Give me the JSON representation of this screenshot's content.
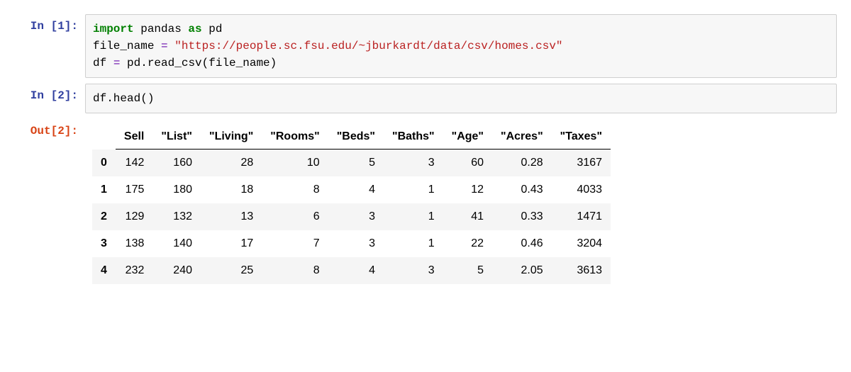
{
  "cells": {
    "in1": {
      "prompt": "In [1]:",
      "code": {
        "line1_kw1": "import",
        "line1_mod": " pandas ",
        "line1_kw2": "as",
        "line1_alias": " pd",
        "line2_var": "file_name ",
        "line2_eq": "=",
        "line2_sp": " ",
        "line2_str": "\"https://people.sc.fsu.edu/~jburkardt/data/csv/homes.csv\"",
        "line3_lhs": "df ",
        "line3_eq": "=",
        "line3_rhs": " pd.read_csv(file_name)"
      }
    },
    "in2": {
      "prompt": "In [2]:",
      "code": "df.head()"
    },
    "out2": {
      "prompt": "Out[2]:",
      "table": {
        "columns": [
          "Sell",
          "\"List\"",
          "\"Living\"",
          "\"Rooms\"",
          "\"Beds\"",
          "\"Baths\"",
          "\"Age\"",
          "\"Acres\"",
          "\"Taxes\""
        ],
        "index": [
          "0",
          "1",
          "2",
          "3",
          "4"
        ],
        "rows": [
          [
            "142",
            "160",
            "28",
            "10",
            "5",
            "3",
            "60",
            "0.28",
            "3167"
          ],
          [
            "175",
            "180",
            "18",
            "8",
            "4",
            "1",
            "12",
            "0.43",
            "4033"
          ],
          [
            "129",
            "132",
            "13",
            "6",
            "3",
            "1",
            "41",
            "0.33",
            "1471"
          ],
          [
            "138",
            "140",
            "17",
            "7",
            "3",
            "1",
            "22",
            "0.46",
            "3204"
          ],
          [
            "232",
            "240",
            "25",
            "8",
            "4",
            "3",
            "5",
            "2.05",
            "3613"
          ]
        ]
      }
    }
  },
  "style": {
    "prompt_in_color": "#303F9F",
    "prompt_out_color": "#D84315",
    "input_bg": "#f7f7f7",
    "input_border": "#cfcfcf",
    "keyword_color": "#008000",
    "operator_color": "#6a0dad",
    "string_color": "#ba2121",
    "row_stripe_color": "#f5f5f5",
    "font_mono": "Menlo, Monaco, Courier New, monospace",
    "code_fontsize": 16,
    "table_fontsize": 16
  }
}
